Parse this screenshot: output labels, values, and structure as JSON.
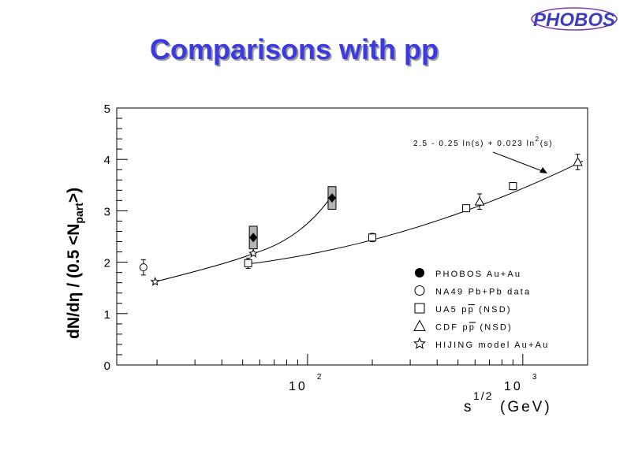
{
  "slide": {
    "title": "Comparisons with pp",
    "logo_text": "PHOBOS"
  },
  "chart_data": {
    "type": "scatter",
    "title": "",
    "ylabel": "dN/dη / (0.5 <N_part>)",
    "xlabel": "s^1/2 (GeV)",
    "x_scale": "log",
    "xlim": [
      13,
      2000
    ],
    "ylim": [
      0,
      5
    ],
    "y_ticks": [
      "0",
      "1",
      "2",
      "3",
      "4",
      "5"
    ],
    "x_tick_labels": [
      {
        "value": 100,
        "base": "10",
        "exp": "2"
      },
      {
        "value": 1000,
        "base": "10",
        "exp": "3"
      }
    ],
    "formula_annotation": {
      "text": "2.5 - 0.25 ln(s) + 0.023 ln²(s)",
      "base_pre": "2.5  - 0.25  ln(s)  + 0.023  ln",
      "sup": "2",
      "base_post": "(s)"
    },
    "legend_position": "bottom-right",
    "series": [
      {
        "name": "PHOBOS Au+Au",
        "marker": "filled-circle",
        "x": [
          56,
          130
        ],
        "y": [
          2.48,
          3.25
        ],
        "yerr": [
          0.22,
          0.22
        ],
        "box": true
      },
      {
        "name": "NA49 Pb+Pb data",
        "marker": "open-circle",
        "x": [
          17.3
        ],
        "y": [
          1.9
        ],
        "yerr": [
          0.15
        ]
      },
      {
        "name": "UA5 pp (NSD)",
        "marker": "open-square",
        "x": [
          53,
          200,
          546,
          900
        ],
        "y": [
          1.98,
          2.48,
          3.05,
          3.48
        ],
        "yerr": [
          0.1,
          0.08,
          0.06,
          0.07
        ]
      },
      {
        "name": "CDF pp (NSD)",
        "marker": "open-triangle",
        "x": [
          630,
          1800
        ],
        "y": [
          3.18,
          3.95
        ],
        "yerr": [
          0.15,
          0.15
        ]
      },
      {
        "name": "HIJING model Au+Au",
        "marker": "star",
        "x": [
          19.6,
          56,
          130
        ],
        "y": [
          1.62,
          2.17,
          3.22
        ]
      }
    ],
    "legend_labels": [
      {
        "pre": "PHOBOS Au+Au",
        "over": "",
        "post": ""
      },
      {
        "pre": "NA49 Pb+Pb data",
        "over": "",
        "post": ""
      },
      {
        "pre": "UA5 p",
        "over": "p",
        "post": " (NSD)"
      },
      {
        "pre": "CDF p",
        "over": "p",
        "post": " (NSD)"
      },
      {
        "pre": "HIJING model Au+Au",
        "over": "",
        "post": ""
      }
    ]
  }
}
